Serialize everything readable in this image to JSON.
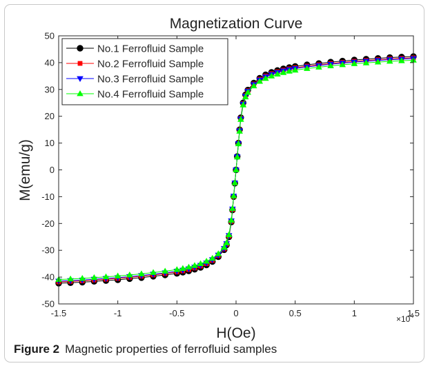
{
  "caption": {
    "label": "Figure 2",
    "text": "Magnetic properties of ferrofluid samples"
  },
  "chart_data": {
    "type": "line",
    "title": "Magnetization Curve",
    "xlabel": "H(Oe)",
    "ylabel": "M(emu/g)",
    "x_exponent": "×10",
    "x_exponent_power": "4",
    "xlim": [
      -15000,
      15000
    ],
    "ylim": [
      -50,
      50
    ],
    "xticks": [
      -15000,
      -10000,
      -5000,
      0,
      5000,
      10000,
      15000
    ],
    "xtick_labels": [
      "-1.5",
      "-1",
      "-0.5",
      "0",
      "0.5",
      "1",
      "1.5"
    ],
    "yticks": [
      -50,
      -40,
      -30,
      -20,
      -10,
      0,
      10,
      20,
      30,
      40,
      50
    ],
    "ytick_labels": [
      "-50",
      "-40",
      "-30",
      "-20",
      "-10",
      "0",
      "10",
      "20",
      "30",
      "40",
      "50"
    ],
    "grid": false,
    "legend_position": "top-left",
    "x": [
      -15000,
      -14000,
      -13000,
      -12000,
      -11000,
      -10000,
      -9000,
      -8000,
      -7000,
      -6000,
      -5000,
      -4500,
      -4000,
      -3500,
      -3000,
      -2500,
      -2000,
      -1500,
      -1000,
      -800,
      -600,
      -400,
      -300,
      -200,
      -100,
      0,
      100,
      200,
      300,
      400,
      600,
      800,
      1000,
      1500,
      2000,
      2500,
      3000,
      3500,
      4000,
      4500,
      5000,
      6000,
      7000,
      8000,
      9000,
      10000,
      11000,
      12000,
      13000,
      14000,
      15000
    ],
    "series": [
      {
        "name": "No.1 Ferrofluid Sample",
        "color": "#000000",
        "marker": "circle",
        "values": [
          -42.3,
          -42.1,
          -41.9,
          -41.6,
          -41.3,
          -41.0,
          -40.6,
          -40.2,
          -39.7,
          -39.2,
          -38.6,
          -38.2,
          -37.7,
          -37.1,
          -36.4,
          -35.5,
          -34.2,
          -32.4,
          -29.8,
          -28.0,
          -25.0,
          -19.5,
          -15.0,
          -10.0,
          -5.0,
          0.0,
          5.0,
          10.0,
          15.0,
          19.5,
          25.0,
          28.0,
          29.8,
          32.4,
          34.2,
          35.5,
          36.4,
          37.1,
          37.7,
          38.2,
          38.6,
          39.2,
          39.7,
          40.2,
          40.6,
          41.0,
          41.3,
          41.6,
          41.9,
          42.1,
          42.3
        ]
      },
      {
        "name": "No.2 Ferrofluid Sample",
        "color": "#ff0000",
        "marker": "square",
        "values": [
          -41.8,
          -41.6,
          -41.4,
          -41.1,
          -40.8,
          -40.5,
          -40.1,
          -39.7,
          -39.2,
          -38.7,
          -38.1,
          -37.7,
          -37.2,
          -36.6,
          -35.9,
          -35.0,
          -33.8,
          -32.0,
          -29.5,
          -27.7,
          -24.7,
          -19.2,
          -14.8,
          -9.9,
          -4.9,
          0.0,
          4.9,
          9.9,
          14.8,
          19.2,
          24.7,
          27.7,
          29.5,
          32.0,
          33.8,
          35.0,
          35.9,
          36.6,
          37.2,
          37.7,
          38.1,
          38.7,
          39.2,
          39.7,
          40.1,
          40.5,
          40.8,
          41.1,
          41.4,
          41.6,
          41.8
        ]
      },
      {
        "name": "No.3 Ferrofluid Sample",
        "color": "#0000ff",
        "marker": "triangle-down",
        "values": [
          -41.5,
          -41.3,
          -41.1,
          -40.8,
          -40.5,
          -40.2,
          -39.8,
          -39.4,
          -38.9,
          -38.4,
          -37.8,
          -37.4,
          -36.9,
          -36.3,
          -35.6,
          -34.7,
          -33.5,
          -31.8,
          -29.3,
          -27.5,
          -24.5,
          -19.0,
          -14.6,
          -9.8,
          -4.9,
          0.0,
          4.9,
          9.8,
          14.6,
          19.0,
          24.5,
          27.5,
          29.3,
          31.8,
          33.5,
          34.7,
          35.6,
          36.3,
          36.9,
          37.4,
          37.8,
          38.4,
          38.9,
          39.4,
          39.8,
          40.2,
          40.5,
          40.8,
          41.1,
          41.3,
          41.5
        ]
      },
      {
        "name": "No.4 Ferrofluid Sample",
        "color": "#00ff00",
        "marker": "triangle-up",
        "values": [
          -40.9,
          -40.7,
          -40.5,
          -40.2,
          -39.9,
          -39.6,
          -39.2,
          -38.8,
          -38.3,
          -37.8,
          -37.2,
          -36.8,
          -36.3,
          -35.7,
          -35.0,
          -34.1,
          -33.0,
          -31.3,
          -28.9,
          -27.2,
          -24.2,
          -18.8,
          -14.4,
          -9.7,
          -4.8,
          0.0,
          4.8,
          9.7,
          14.4,
          18.8,
          24.2,
          27.2,
          28.9,
          31.3,
          33.0,
          34.1,
          35.0,
          35.7,
          36.3,
          36.8,
          37.2,
          37.8,
          38.3,
          38.8,
          39.2,
          39.6,
          39.9,
          40.2,
          40.5,
          40.7,
          40.9
        ]
      }
    ]
  }
}
